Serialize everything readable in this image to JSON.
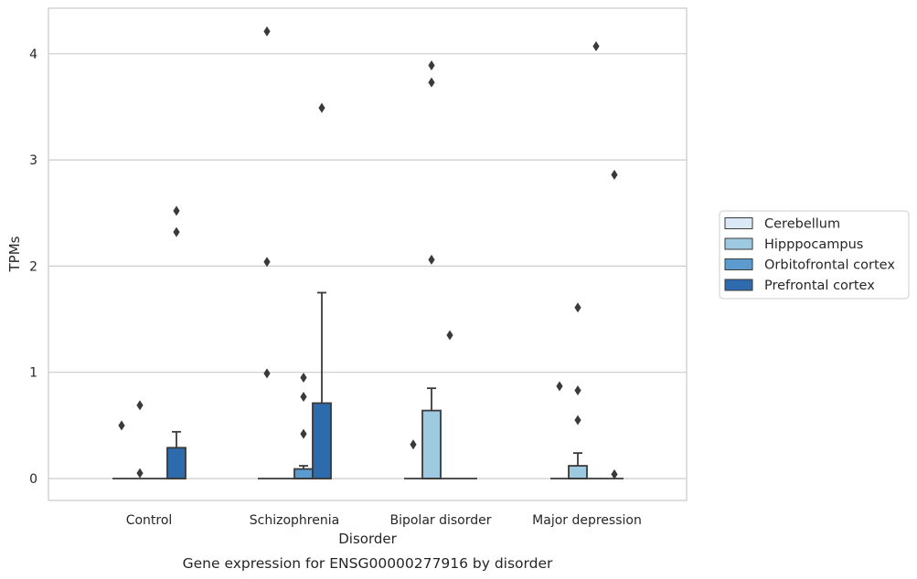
{
  "caption": "Gene expression for ENSG00000277916 by disorder",
  "chart_data": {
    "type": "box",
    "xlabel": "Disorder",
    "ylabel": "TPMs",
    "ylim": [
      -0.2,
      4.33
    ],
    "yticks": [
      "0",
      "1",
      "2",
      "3",
      "4"
    ],
    "grid": "horizontal",
    "legend_position": "right",
    "categories": [
      "Control",
      "Schizophrenia",
      "Bipolar disorder",
      "Major depression"
    ],
    "series": [
      {
        "name": "Cerebellum",
        "color": "#dbe9f6",
        "boxes": [
          {
            "q1": 0,
            "median": 0,
            "q3": 0,
            "whisker_low": 0,
            "whisker_high": 0,
            "outliers": [
              0.5
            ]
          },
          {
            "q1": 0,
            "median": 0,
            "q3": 0,
            "whisker_low": 0,
            "whisker_high": 0,
            "outliers": [
              4.21,
              2.04,
              0.99
            ]
          },
          {
            "q1": 0,
            "median": 0,
            "q3": 0,
            "whisker_low": 0,
            "whisker_high": 0,
            "outliers": [
              0.32
            ]
          },
          {
            "q1": 0,
            "median": 0,
            "q3": 0,
            "whisker_low": 0,
            "whisker_high": 0,
            "outliers": [
              0.87
            ]
          }
        ]
      },
      {
        "name": "Hipppocampus",
        "color": "#9ecae1",
        "boxes": [
          {
            "q1": 0,
            "median": 0,
            "q3": 0,
            "whisker_low": 0,
            "whisker_high": 0,
            "outliers": [
              0.69,
              0.05
            ]
          },
          {
            "q1": 0,
            "median": 0,
            "q3": 0,
            "whisker_low": 0,
            "whisker_high": 0,
            "outliers": []
          },
          {
            "q1": 0,
            "median": 0,
            "q3": 0.64,
            "whisker_low": 0,
            "whisker_high": 0.85,
            "outliers": [
              3.89,
              3.73,
              2.06
            ]
          },
          {
            "q1": 0,
            "median": 0,
            "q3": 0.12,
            "whisker_low": 0,
            "whisker_high": 0.24,
            "outliers": [
              1.61,
              0.83,
              0.55
            ]
          }
        ]
      },
      {
        "name": "Orbitofrontal cortex",
        "color": "#5b9bd0",
        "boxes": [
          {
            "q1": 0,
            "median": 0,
            "q3": 0,
            "whisker_low": 0,
            "whisker_high": 0,
            "outliers": []
          },
          {
            "q1": 0,
            "median": 0,
            "q3": 0.09,
            "whisker_low": 0,
            "whisker_high": 0.12,
            "outliers": [
              0.95,
              0.77,
              0.42
            ]
          },
          {
            "q1": 0,
            "median": 0,
            "q3": 0,
            "whisker_low": 0,
            "whisker_high": 0,
            "outliers": [
              1.35
            ]
          },
          {
            "q1": 0,
            "median": 0,
            "q3": 0,
            "whisker_low": 0,
            "whisker_high": 0,
            "outliers": [
              4.07
            ]
          }
        ]
      },
      {
        "name": "Prefrontal cortex",
        "color": "#2e6bac",
        "boxes": [
          {
            "q1": 0,
            "median": 0,
            "q3": 0.29,
            "whisker_low": 0,
            "whisker_high": 0.44,
            "outliers": [
              2.52,
              2.32
            ]
          },
          {
            "q1": 0,
            "median": 0,
            "q3": 0.71,
            "whisker_low": 0,
            "whisker_high": 1.75,
            "outliers": [
              3.49
            ]
          },
          {
            "q1": 0,
            "median": 0,
            "q3": 0,
            "whisker_low": 0,
            "whisker_high": 0,
            "outliers": []
          },
          {
            "q1": 0,
            "median": 0,
            "q3": 0,
            "whisker_low": 0,
            "whisker_high": 0,
            "outliers": [
              2.86,
              0.04
            ]
          }
        ]
      }
    ]
  }
}
